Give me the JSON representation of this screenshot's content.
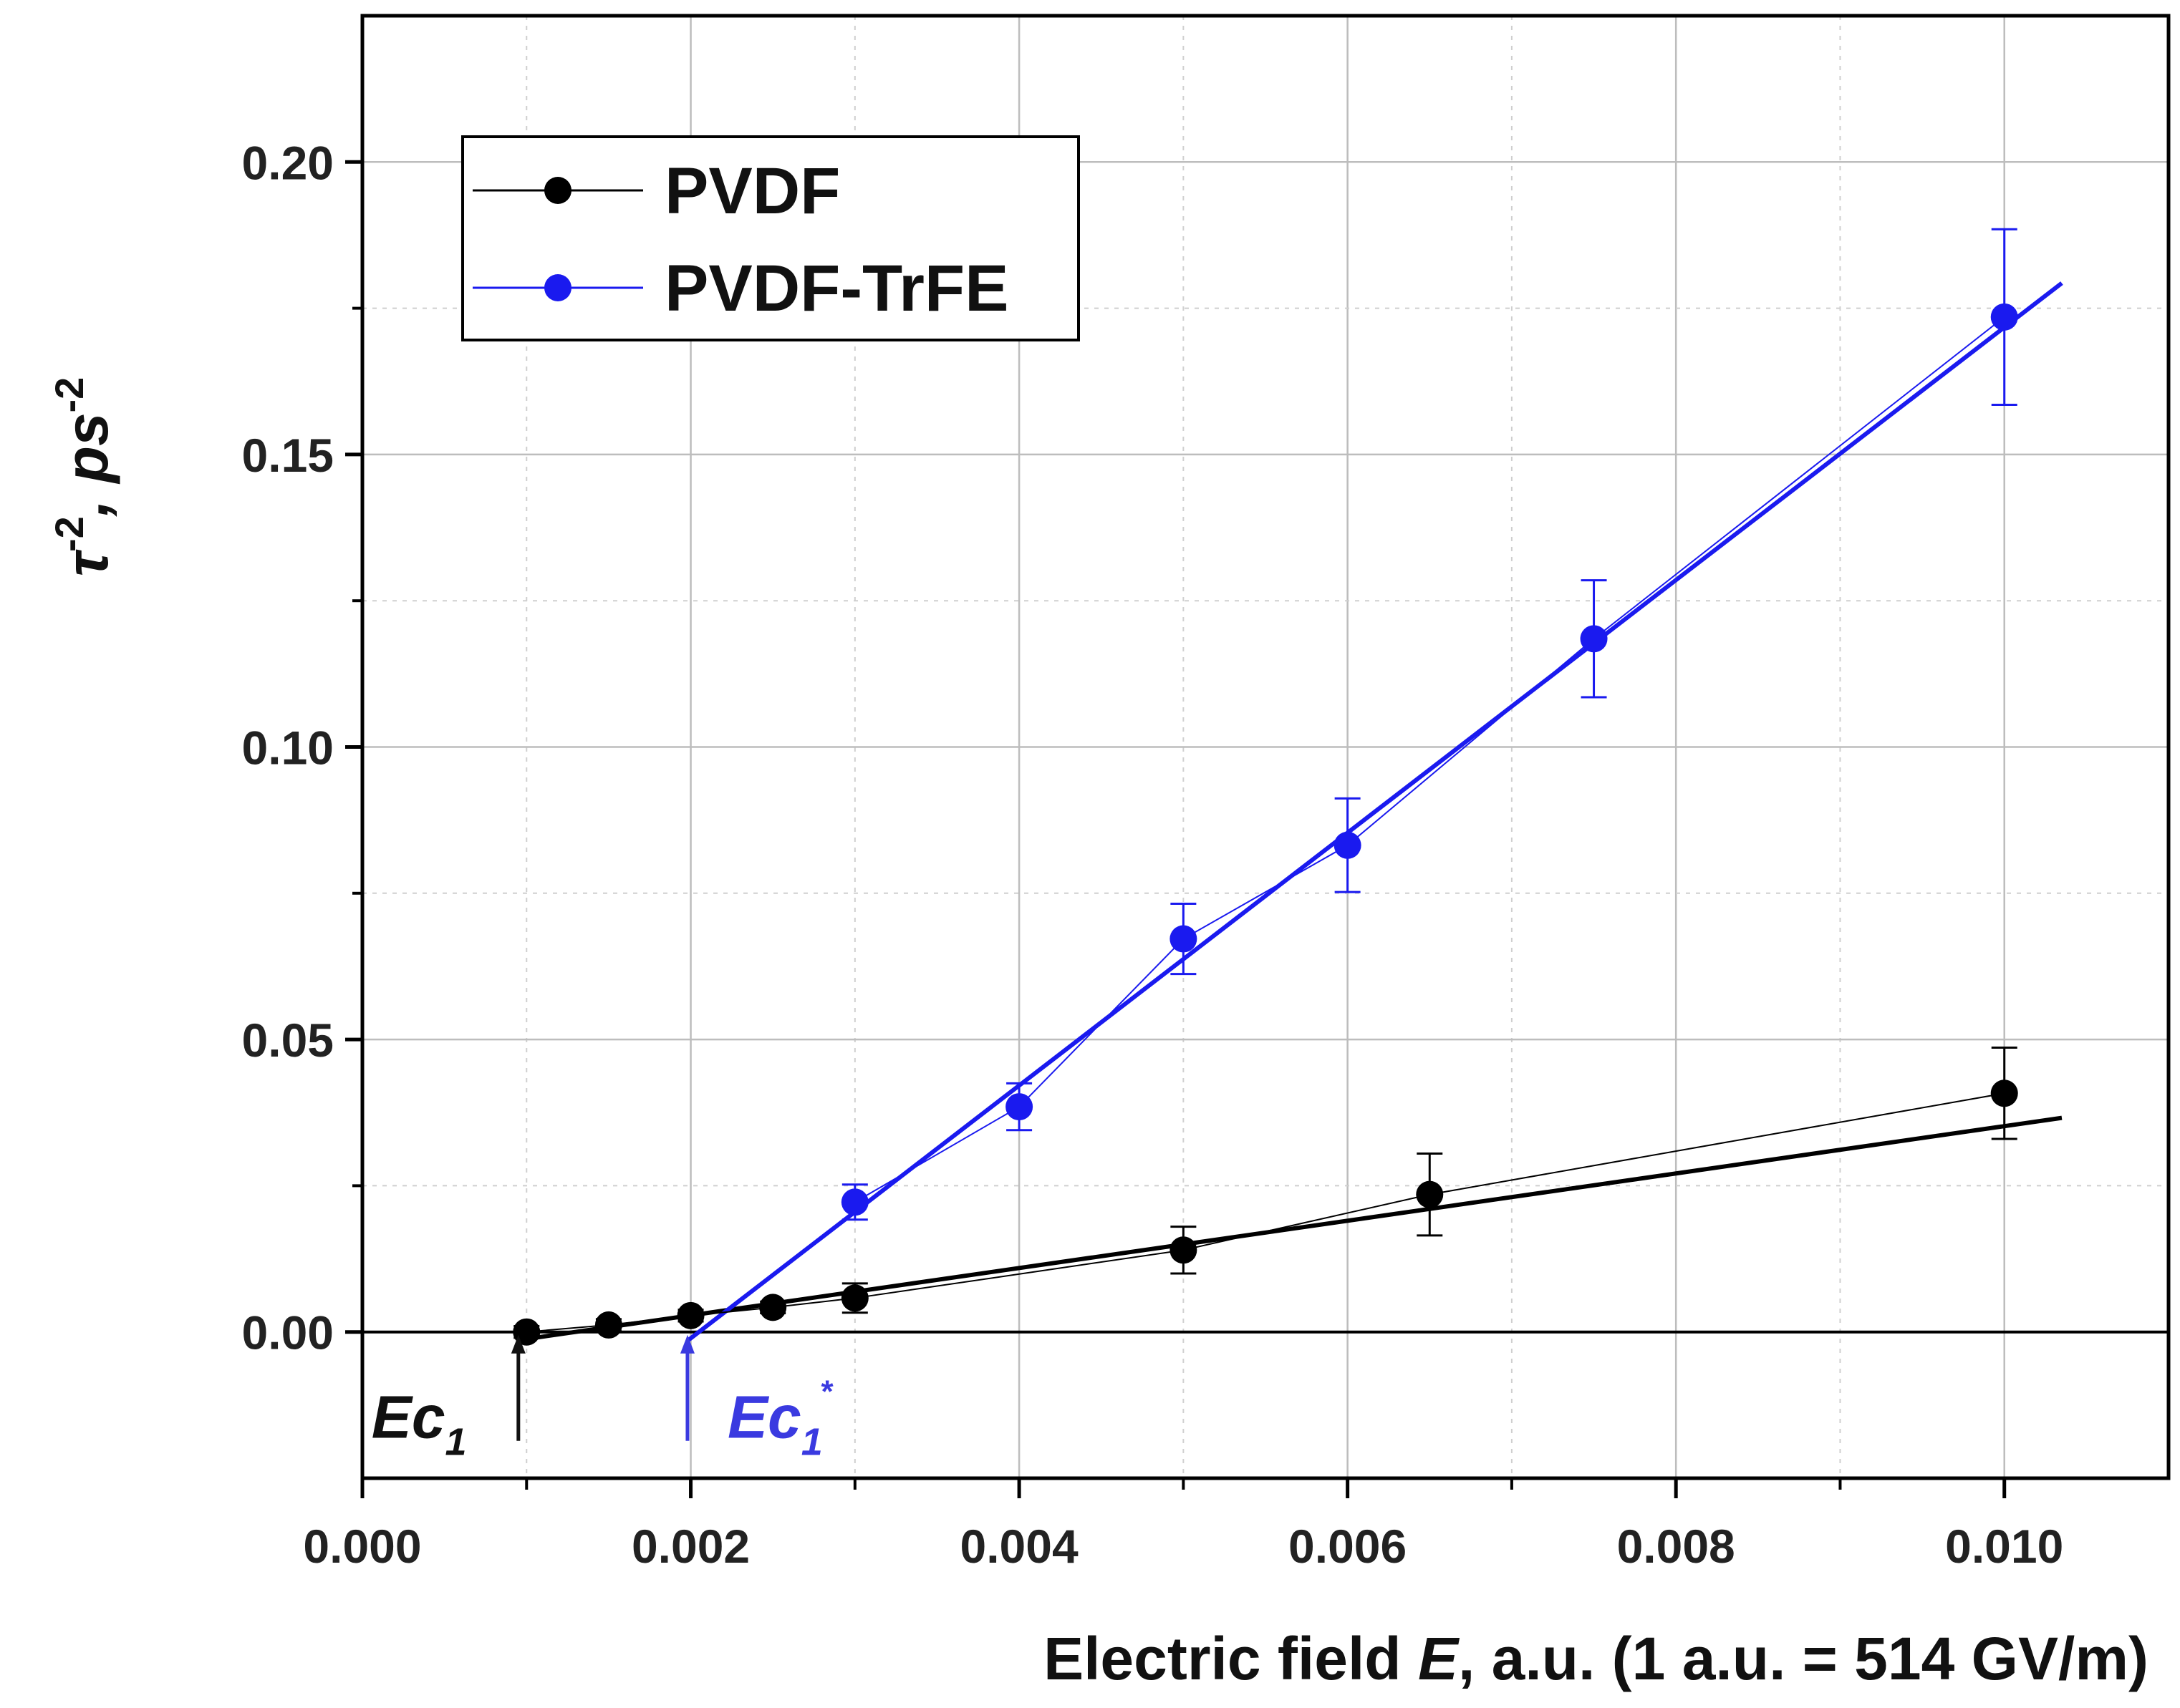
{
  "chart_data": {
    "type": "scatter",
    "xlabel": {
      "prefix": "Electric field ",
      "var": "E",
      "suffix": ", a.u. (1 a.u. = 514 GV/m)"
    },
    "ylabel": {
      "tau": "τ",
      "sup1": "-2",
      "mid": ", ps",
      "sup2": "-2"
    },
    "xlim": [
      0.0,
      0.011
    ],
    "ylim": [
      -0.025,
      0.225
    ],
    "x_ticks": [
      0.0,
      0.002,
      0.004,
      0.006,
      0.008,
      0.01
    ],
    "x_tick_labels": [
      "0.000",
      "0.002",
      "0.004",
      "0.006",
      "0.008",
      "0.010"
    ],
    "x_minor_ticks": [
      0.001,
      0.003,
      0.005,
      0.007,
      0.009,
      0.011
    ],
    "y_ticks": [
      0.0,
      0.05,
      0.1,
      0.15,
      0.2
    ],
    "y_tick_labels": [
      "0.00",
      "0.05",
      "0.10",
      "0.15",
      "0.20"
    ],
    "y_minor_ticks": [
      -0.025,
      0.025,
      0.075,
      0.125,
      0.175,
      0.225
    ],
    "grid": true,
    "legend_position": "top-left",
    "series": [
      {
        "name": "PVDF",
        "color": "#000000",
        "x": [
          0.001,
          0.0015,
          0.002,
          0.0025,
          0.003,
          0.005,
          0.0065,
          0.01
        ],
        "y": [
          0.0,
          0.0012,
          0.0028,
          0.0042,
          0.0058,
          0.014,
          0.0235,
          0.0408
        ],
        "err": [
          0.001,
          0.001,
          0.001,
          0.001,
          0.0025,
          0.004,
          0.007,
          0.0078
        ],
        "fit": {
          "x": [
            0.001,
            0.01035
          ],
          "y": [
            -0.0012,
            0.0366
          ]
        }
      },
      {
        "name": "PVDF-TrFE",
        "color": "#1a1aef",
        "x": [
          0.003,
          0.004,
          0.005,
          0.006,
          0.0075,
          0.01
        ],
        "y": [
          0.0222,
          0.0385,
          0.0672,
          0.0832,
          0.1185,
          0.1735
        ],
        "err": [
          0.003,
          0.004,
          0.006,
          0.008,
          0.01,
          0.015
        ],
        "fit": {
          "x": [
            0.00198,
            0.01035
          ],
          "y": [
            -0.0015,
            0.1793
          ]
        }
      }
    ],
    "annotations": [
      {
        "main": "Ec",
        "sub": "1",
        "sup": "",
        "x": 0.00095,
        "color": "#111111"
      },
      {
        "main": "Ec",
        "sub": "1",
        "sup": "*",
        "x": 0.00198,
        "color": "#3a3ae0"
      }
    ]
  }
}
